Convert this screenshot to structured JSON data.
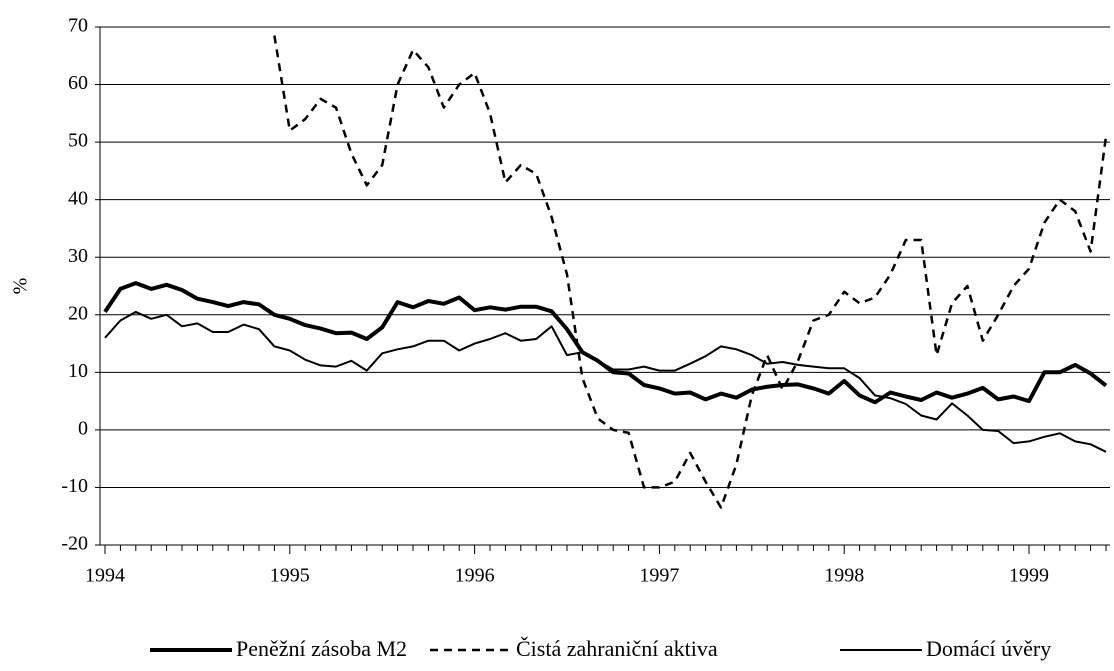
{
  "chart_data": {
    "type": "line",
    "y_label": "%",
    "categories": [
      "1994",
      null,
      null,
      null,
      null,
      null,
      null,
      null,
      null,
      null,
      null,
      null,
      "1995",
      null,
      null,
      null,
      null,
      null,
      null,
      null,
      null,
      null,
      null,
      null,
      "1996",
      null,
      null,
      null,
      null,
      null,
      null,
      null,
      null,
      null,
      null,
      null,
      "1997",
      null,
      null,
      null,
      null,
      null,
      null,
      null,
      null,
      null,
      null,
      null,
      "1998",
      null,
      null,
      null,
      null,
      null,
      null,
      null,
      null,
      null,
      null,
      null,
      "1999",
      null,
      null,
      null,
      null,
      null
    ],
    "ylim": [
      -20,
      70
    ],
    "yticks": [
      -20,
      -10,
      0,
      10,
      20,
      30,
      40,
      50,
      60,
      70
    ],
    "grid": true,
    "series": [
      {
        "name": "Peněžní zásoba M2",
        "color": "#000000",
        "width": 4,
        "dash": false,
        "values": [
          20.5,
          24.5,
          25.5,
          24.5,
          25.2,
          24.3,
          22.8,
          22.2,
          21.5,
          22.2,
          21.8,
          20.0,
          19.3,
          18.2,
          17.6,
          16.8,
          16.9,
          15.8,
          17.8,
          22.2,
          21.3,
          22.4,
          21.9,
          23.0,
          20.8,
          21.3,
          20.9,
          21.4,
          21.4,
          20.6,
          17.5,
          13.5,
          12.0,
          10.0,
          9.8,
          7.8,
          7.2,
          6.3,
          6.5,
          5.3,
          6.3,
          5.6,
          7.0,
          7.5,
          7.8,
          7.9,
          7.2,
          6.3,
          8.5,
          6.0,
          4.8,
          6.5,
          5.8,
          5.2,
          6.5,
          5.6,
          6.3,
          7.3,
          5.3,
          5.8,
          5.0,
          10.0,
          10.0,
          11.3,
          9.8,
          7.7
        ]
      },
      {
        "name": "Čistá zahraniční aktiva",
        "color": "#000000",
        "width": 2.5,
        "dash": true,
        "values": [
          null,
          null,
          null,
          null,
          null,
          null,
          null,
          null,
          null,
          null,
          null,
          68.5,
          52,
          54,
          57.5,
          56,
          48,
          42.5,
          46,
          60,
          66,
          63,
          56,
          60,
          62,
          55,
          43,
          46,
          44.5,
          37,
          27,
          9,
          2,
          0,
          -0.5,
          -10,
          -10,
          -9,
          -4,
          -9,
          -13.5,
          -6,
          6,
          13,
          7,
          12,
          19,
          20,
          24,
          22,
          23,
          27,
          33,
          33,
          13,
          22,
          25,
          15.5,
          20,
          25,
          28,
          36,
          40,
          38,
          31,
          51
        ]
      },
      {
        "name": "Domácí úvěry",
        "color": "#000000",
        "width": 2,
        "dash": false,
        "values": [
          16,
          19,
          20.5,
          19.3,
          20,
          18,
          18.5,
          17,
          17,
          18.3,
          17.5,
          14.5,
          13.8,
          12.2,
          11.2,
          11,
          12,
          10.3,
          13.3,
          14,
          14.5,
          15.5,
          15.5,
          13.8,
          15,
          15.8,
          16.8,
          15.5,
          15.8,
          18,
          13,
          13.5,
          12,
          10.5,
          10.5,
          11,
          10.3,
          10.3,
          11.5,
          12.8,
          14.5,
          14,
          13,
          11.5,
          11.8,
          11.3,
          11,
          10.7,
          10.7,
          9,
          6,
          5.5,
          4.5,
          2.5,
          1.8,
          4.6,
          2.5,
          0,
          -0.2,
          -2.3,
          -2,
          -1.2,
          -0.6,
          -2,
          -2.5,
          -3.8
        ]
      }
    ]
  }
}
